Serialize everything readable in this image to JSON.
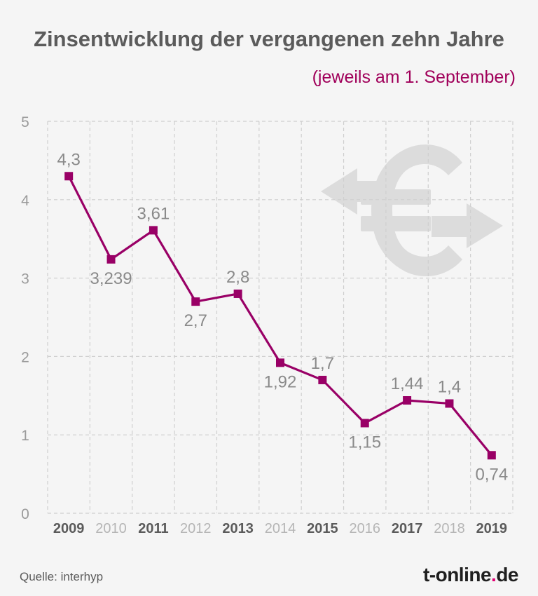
{
  "title": "Zinsentwicklung der vergangenen zehn Jahre",
  "subtitle": "(jeweils am 1. September)",
  "source": "Quelle: interhyp",
  "logo": {
    "main": "t-online",
    "dot": ".",
    "suffix": "de"
  },
  "colors": {
    "line": "#990066",
    "marker": "#990066",
    "grid": "#cfcfcf",
    "axis_text": "#9a9a9a",
    "year_dark": "#5b5b5b",
    "year_light": "#b5b5b5",
    "label": "#8a8a8a",
    "subtitle": "#a0005a",
    "logo_dot": "#e20074",
    "watermark": "#dcdcdc"
  },
  "watermark_icon": "euro-arrows-icon",
  "chart_data": {
    "type": "line",
    "title": "Zinsentwicklung der vergangenen zehn Jahre",
    "subtitle": "(jeweils am 1. September)",
    "categories": [
      "2009",
      "2010",
      "2011",
      "2012",
      "2013",
      "2014",
      "2015",
      "2016",
      "2017",
      "2018",
      "2019"
    ],
    "categories_emphasized": [
      true,
      false,
      true,
      false,
      true,
      false,
      true,
      false,
      true,
      false,
      true
    ],
    "x": [
      2009.0,
      2010.0,
      2011.0,
      2012.0,
      2013.0,
      2014.0,
      2015.0,
      2016.0,
      2017.0,
      2018.0,
      2019.0
    ],
    "series": [
      {
        "values": [
          4.3,
          3.239,
          3.61,
          2.7,
          2.8,
          1.92,
          1.7,
          1.15,
          1.44,
          1.4,
          0.74
        ],
        "labels": [
          "4,3",
          "3,239",
          "3,61",
          "2,7",
          "2,8",
          "1,92",
          "1,7",
          "1,15",
          "1,44",
          "1,4",
          "0,74"
        ],
        "label_positions": [
          "above",
          "below",
          "above",
          "below",
          "above",
          "below",
          "above",
          "below",
          "above",
          "above",
          "below"
        ]
      }
    ],
    "yticks": [
      "0",
      "1",
      "2",
      "3",
      "4",
      "5"
    ],
    "ylim": [
      0,
      5
    ],
    "xlim": [
      2008.5,
      2019.5
    ],
    "grid": true,
    "legend": "none"
  }
}
